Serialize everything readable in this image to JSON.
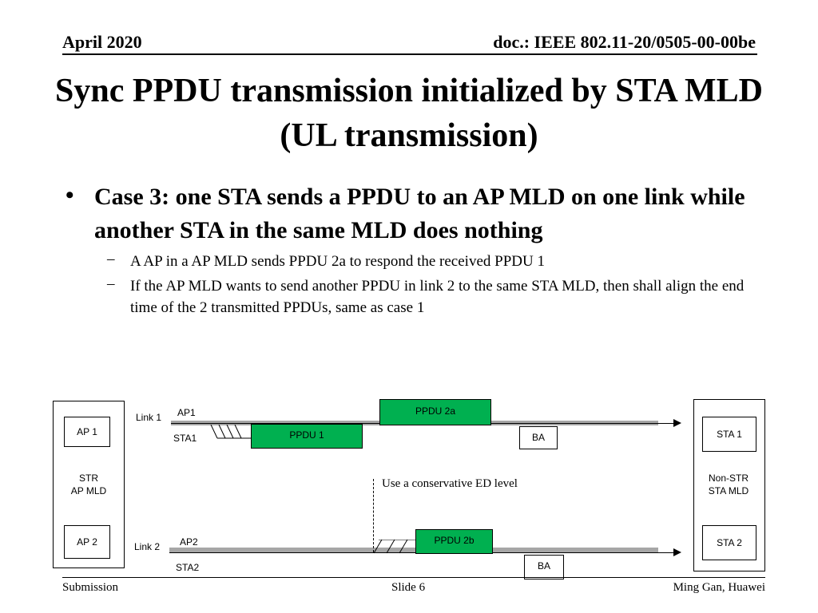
{
  "header": {
    "date": "April 2020",
    "doc": "doc.: IEEE 802.11-20/0505-00-00be"
  },
  "title": "Sync PPDU transmission initialized by STA MLD (UL transmission)",
  "bullet": {
    "symbol": "•",
    "text": "Case 3: one STA sends a PPDU to an AP MLD on one link while another STA in the same MLD does nothing",
    "subs": [
      "A AP in a AP MLD sends PPDU 2a to respond the received PPDU 1",
      "If the AP MLD wants to send another PPDU in link 2 to the same STA MLD, then shall align the end time of the 2 transmitted PPDUs, same as case 1"
    ],
    "dash": "–"
  },
  "diagram": {
    "left_mld": {
      "top": "AP 1",
      "mid_line1": "STR",
      "mid_line2": "AP MLD",
      "bottom": "AP 2"
    },
    "right_mld": {
      "top": "STA 1",
      "mid_line1": "Non-STR",
      "mid_line2": "STA MLD",
      "bottom": "STA 2"
    },
    "link1": {
      "label": "Link 1",
      "ap": "AP1",
      "sta": "STA1",
      "ppdu_ap": "PPDU 2a",
      "ppdu_sta": "PPDU 1",
      "ba": "BA"
    },
    "link2": {
      "label": "Link 2",
      "ap": "AP2",
      "sta": "STA2",
      "ppdu_ap": "PPDU 2b",
      "ba": "BA"
    },
    "note": "Use a conservative ED level",
    "colors": {
      "ppdu": "#00b050",
      "bar": "#a6a6a6"
    }
  },
  "footer": {
    "left": "Submission",
    "center": "Slide 6",
    "right": "Ming Gan, Huawei"
  }
}
